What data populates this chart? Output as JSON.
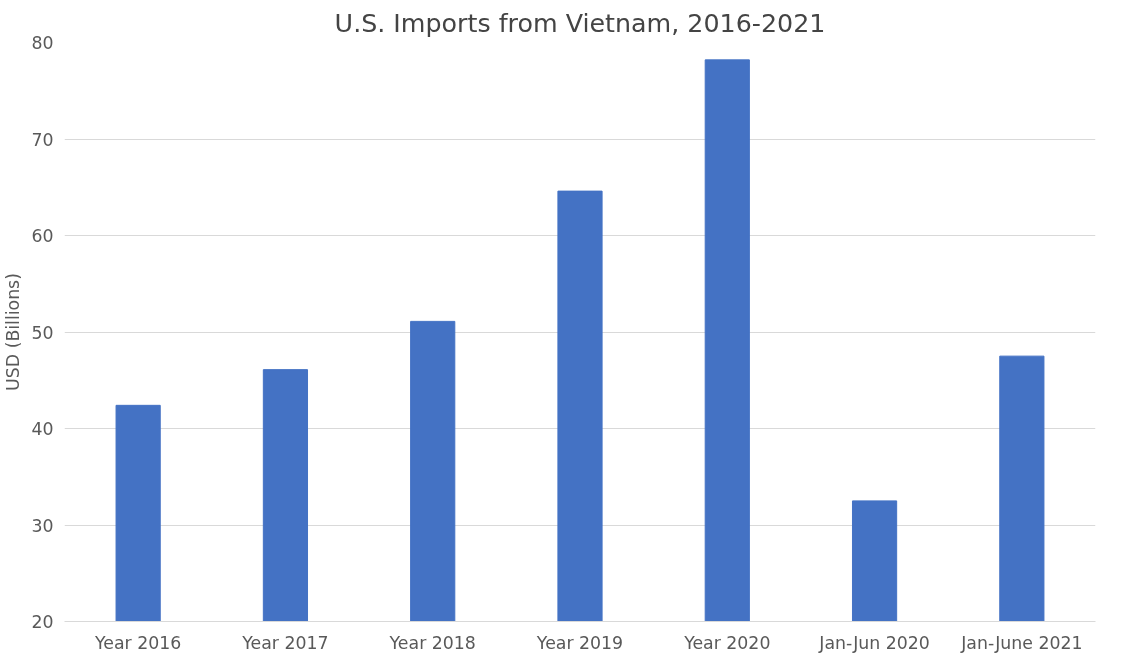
{
  "chart_data": {
    "type": "bar",
    "title": "U.S. Imports from Vietnam, 2016-2021",
    "ylabel": "USD (Billions)",
    "categories": [
      "Year 2016",
      "Year 2017",
      "Year 2018",
      "Year 2019",
      "Year 2020",
      "Jan-Jun 2020",
      "Jan-June 2021"
    ],
    "values": [
      42.4,
      46.1,
      51.1,
      64.6,
      78.2,
      32.5,
      47.5
    ],
    "color": "#4472c4",
    "ylim": [
      20,
      80
    ],
    "yticks": [
      20,
      30,
      40,
      50,
      60,
      70,
      80
    ],
    "grid": "y"
  }
}
